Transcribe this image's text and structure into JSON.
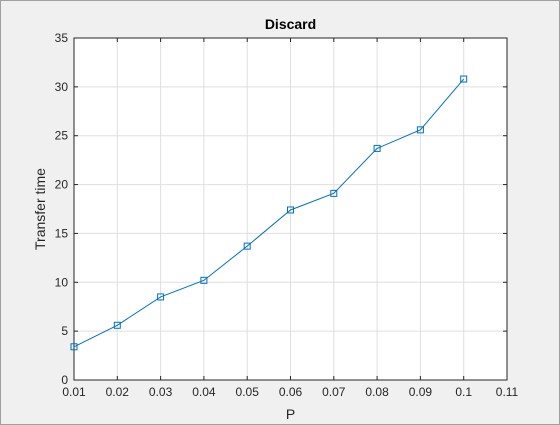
{
  "chart_data": {
    "type": "line",
    "title": "Discard",
    "xlabel": "P",
    "ylabel": "Transfer time",
    "xlim": [
      0.01,
      0.11
    ],
    "ylim": [
      0,
      35
    ],
    "xticks": [
      0.01,
      0.02,
      0.03,
      0.04,
      0.05,
      0.06,
      0.07,
      0.08,
      0.09,
      0.1,
      0.11
    ],
    "xtick_labels": [
      "0.01",
      "0.02",
      "0.03",
      "0.04",
      "0.05",
      "0.06",
      "0.07",
      "0.08",
      "0.09",
      "0.1",
      "0.11"
    ],
    "yticks": [
      0,
      5,
      10,
      15,
      20,
      25,
      30,
      35
    ],
    "ytick_labels": [
      "0",
      "5",
      "10",
      "15",
      "20",
      "25",
      "30",
      "35"
    ],
    "grid": true,
    "marker": "square",
    "series": [
      {
        "x": [
          0.01,
          0.02,
          0.03,
          0.04,
          0.05,
          0.06,
          0.07,
          0.08,
          0.09,
          0.1
        ],
        "y": [
          3.4,
          5.6,
          8.5,
          10.2,
          13.7,
          17.4,
          19.1,
          23.7,
          25.6,
          30.8
        ],
        "color": "#0072bd"
      }
    ]
  }
}
